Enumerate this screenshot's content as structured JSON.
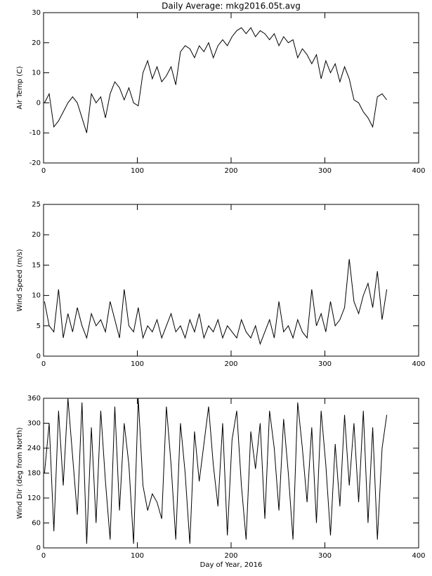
{
  "chart_data": [
    {
      "type": "line",
      "title": "Daily Average: mkg2016.05t.avg",
      "ylabel": "Air Temp (C)",
      "color": "#000000",
      "x": [
        1,
        6,
        11,
        16,
        21,
        26,
        31,
        36,
        41,
        46,
        51,
        56,
        61,
        66,
        71,
        76,
        81,
        86,
        91,
        96,
        101,
        106,
        111,
        116,
        121,
        126,
        131,
        136,
        141,
        146,
        151,
        156,
        161,
        166,
        171,
        176,
        181,
        186,
        191,
        196,
        201,
        206,
        211,
        216,
        221,
        226,
        231,
        236,
        241,
        246,
        251,
        256,
        261,
        266,
        271,
        276,
        281,
        286,
        291,
        296,
        301,
        306,
        311,
        316,
        321,
        326,
        331,
        336,
        341,
        346,
        351,
        356,
        361,
        366
      ],
      "values": [
        0,
        3,
        -8,
        -6,
        -3,
        0,
        2,
        0,
        -5,
        -10,
        3,
        0,
        2,
        -5,
        3,
        7,
        5,
        1,
        5,
        0,
        -1,
        10,
        14,
        8,
        12,
        7,
        9,
        12,
        6,
        17,
        19,
        18,
        15,
        19,
        17,
        20,
        15,
        19,
        21,
        19,
        22,
        24,
        25,
        23,
        25,
        22,
        24,
        23,
        21,
        23,
        19,
        22,
        20,
        21,
        15,
        18,
        16,
        13,
        16,
        8,
        14,
        10,
        13,
        7,
        12,
        8,
        1,
        0,
        -3,
        -5,
        -8,
        2,
        3,
        1
      ],
      "xlim": [
        0,
        400
      ],
      "xticks": [
        0,
        100,
        200,
        300,
        400
      ],
      "ylim": [
        -20,
        30
      ],
      "yticks": [
        -20,
        -10,
        0,
        10,
        20,
        30
      ]
    },
    {
      "type": "line",
      "ylabel": "Wind Speed (m/s)",
      "color": "#000000",
      "x": [
        1,
        6,
        11,
        16,
        21,
        26,
        31,
        36,
        41,
        46,
        51,
        56,
        61,
        66,
        71,
        76,
        81,
        86,
        91,
        96,
        101,
        106,
        111,
        116,
        121,
        126,
        131,
        136,
        141,
        146,
        151,
        156,
        161,
        166,
        171,
        176,
        181,
        186,
        191,
        196,
        201,
        206,
        211,
        216,
        221,
        226,
        231,
        236,
        241,
        246,
        251,
        256,
        261,
        266,
        271,
        276,
        281,
        286,
        291,
        296,
        301,
        306,
        311,
        316,
        321,
        326,
        331,
        336,
        341,
        346,
        351,
        356,
        361,
        366
      ],
      "values": [
        9,
        5,
        4,
        11,
        3,
        7,
        4,
        8,
        5,
        3,
        7,
        5,
        6,
        4,
        9,
        6,
        3,
        11,
        5,
        4,
        8,
        3,
        5,
        4,
        6,
        3,
        5,
        7,
        4,
        5,
        3,
        6,
        4,
        7,
        3,
        5,
        4,
        6,
        3,
        5,
        4,
        3,
        6,
        4,
        3,
        5,
        2,
        4,
        6,
        3,
        9,
        4,
        5,
        3,
        6,
        4,
        3,
        11,
        5,
        7,
        4,
        9,
        5,
        6,
        8,
        16,
        9,
        7,
        10,
        12,
        8,
        14,
        6,
        11
      ],
      "xlim": [
        0,
        400
      ],
      "xticks": [
        0,
        100,
        200,
        300,
        400
      ],
      "ylim": [
        0,
        25
      ],
      "yticks": [
        0,
        5,
        10,
        15,
        20,
        25
      ]
    },
    {
      "type": "line",
      "ylabel": "Wind Dir (deg from North)",
      "xlabel": "Day of Year, 2016",
      "color": "#000000",
      "x": [
        1,
        6,
        11,
        16,
        21,
        26,
        31,
        36,
        41,
        46,
        51,
        56,
        61,
        66,
        71,
        76,
        81,
        86,
        91,
        96,
        101,
        106,
        111,
        116,
        121,
        126,
        131,
        136,
        141,
        146,
        151,
        156,
        161,
        166,
        171,
        176,
        181,
        186,
        191,
        196,
        201,
        206,
        211,
        216,
        221,
        226,
        231,
        236,
        241,
        246,
        251,
        256,
        261,
        266,
        271,
        276,
        281,
        286,
        291,
        296,
        301,
        306,
        311,
        316,
        321,
        326,
        331,
        336,
        341,
        346,
        351,
        356,
        361,
        366
      ],
      "values": [
        180,
        300,
        40,
        330,
        150,
        360,
        220,
        80,
        350,
        10,
        290,
        60,
        330,
        160,
        20,
        340,
        90,
        300,
        200,
        10,
        360,
        150,
        90,
        130,
        110,
        70,
        340,
        200,
        20,
        300,
        180,
        10,
        280,
        160,
        250,
        340,
        200,
        100,
        300,
        30,
        260,
        330,
        150,
        20,
        280,
        190,
        300,
        70,
        330,
        240,
        90,
        310,
        180,
        20,
        350,
        240,
        110,
        290,
        60,
        330,
        200,
        30,
        250,
        100,
        320,
        150,
        300,
        110,
        330,
        60,
        290,
        20,
        240,
        320
      ],
      "xlim": [
        0,
        400
      ],
      "xticks": [
        0,
        100,
        200,
        300,
        400
      ],
      "ylim": [
        0,
        360
      ],
      "yticks": [
        0,
        60,
        120,
        180,
        240,
        300,
        360
      ]
    }
  ]
}
